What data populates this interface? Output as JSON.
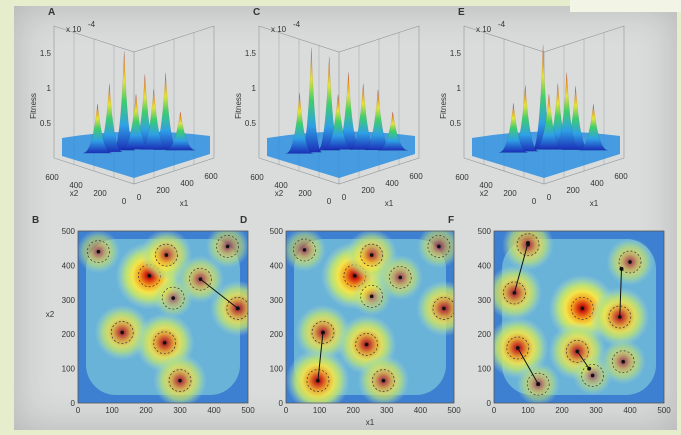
{
  "panels": {
    "A": {
      "letter": "A",
      "zscale": "x 10",
      "zexp": "-4",
      "zlabel": "Fitness",
      "zticks": [
        "0.5",
        "1",
        "1.5"
      ],
      "x1label": "x1",
      "x2label": "x2",
      "x1ticks": [
        "0",
        "200",
        "400",
        "600"
      ],
      "x2ticks": [
        "0",
        "200",
        "400",
        "600"
      ]
    },
    "C": {
      "letter": "C",
      "zscale": "x 10",
      "zexp": "-4",
      "zlabel": "Fitness",
      "zticks": [
        "0.5",
        "1",
        "1.5"
      ],
      "x1label": "x1",
      "x2label": "x2",
      "x1ticks": [
        "0",
        "200",
        "400",
        "600"
      ],
      "x2ticks": [
        "0",
        "200",
        "400",
        "600"
      ]
    },
    "E": {
      "letter": "E",
      "zscale": "x 10",
      "zexp": "-4",
      "zlabel": "Fitness",
      "zticks": [
        "0.5",
        "1",
        "1.5"
      ],
      "x1label": "x1",
      "x2label": "x2",
      "x1ticks": [
        "0",
        "200",
        "400",
        "600"
      ],
      "x2ticks": [
        "0",
        "200",
        "400",
        "600"
      ]
    },
    "B": {
      "letter": "B",
      "ylabel": "x2",
      "xlabel": "",
      "xticks": [
        "0",
        "100",
        "200",
        "300",
        "400",
        "500"
      ],
      "yticks": [
        "0",
        "100",
        "200",
        "300",
        "400",
        "500"
      ]
    },
    "D": {
      "letter": "D",
      "ylabel": "",
      "xlabel": "x1",
      "xticks": [
        "0",
        "100",
        "200",
        "300",
        "400",
        "500"
      ],
      "yticks": [
        "0",
        "100",
        "200",
        "300",
        "400",
        "500"
      ]
    },
    "F": {
      "letter": "F",
      "ylabel": "",
      "xlabel": "",
      "xticks": [
        "0",
        "100",
        "200",
        "300",
        "400",
        "500"
      ],
      "yticks": [
        "0",
        "100",
        "200",
        "300",
        "400",
        "500"
      ]
    }
  },
  "chart_data": [
    {
      "panel": "B",
      "type": "heatmap",
      "xlim": [
        0,
        500
      ],
      "ylim": [
        0,
        500
      ],
      "peaks": [
        {
          "x": 210,
          "y": 370,
          "level": 1.0
        },
        {
          "x": 260,
          "y": 430,
          "level": 0.6
        },
        {
          "x": 130,
          "y": 205,
          "level": 0.7
        },
        {
          "x": 255,
          "y": 175,
          "level": 0.8
        },
        {
          "x": 300,
          "y": 65,
          "level": 0.65
        },
        {
          "x": 470,
          "y": 275,
          "level": 0.7
        },
        {
          "x": 60,
          "y": 440,
          "level": 0.4
        },
        {
          "x": 440,
          "y": 455,
          "level": 0.4
        },
        {
          "x": 360,
          "y": 360,
          "level": 0.5
        },
        {
          "x": 280,
          "y": 305,
          "level": 0.3
        }
      ],
      "paths": [
        [
          [
            360,
            360
          ],
          [
            470,
            275
          ]
        ]
      ]
    },
    {
      "panel": "D",
      "type": "heatmap",
      "xlim": [
        0,
        500
      ],
      "ylim": [
        0,
        500
      ],
      "peaks": [
        {
          "x": 205,
          "y": 370,
          "level": 1.0
        },
        {
          "x": 255,
          "y": 430,
          "level": 0.6
        },
        {
          "x": 110,
          "y": 205,
          "level": 0.7
        },
        {
          "x": 240,
          "y": 170,
          "level": 0.8
        },
        {
          "x": 95,
          "y": 65,
          "level": 0.9
        },
        {
          "x": 290,
          "y": 65,
          "level": 0.6
        },
        {
          "x": 470,
          "y": 275,
          "level": 0.7
        },
        {
          "x": 55,
          "y": 445,
          "level": 0.4
        },
        {
          "x": 455,
          "y": 455,
          "level": 0.4
        },
        {
          "x": 340,
          "y": 365,
          "level": 0.45
        },
        {
          "x": 255,
          "y": 310,
          "level": 0.3
        }
      ],
      "paths": [
        [
          [
            95,
            65
          ],
          [
            110,
            205
          ]
        ]
      ]
    },
    {
      "panel": "F",
      "type": "heatmap",
      "xlim": [
        0,
        500
      ],
      "ylim": [
        0,
        500
      ],
      "peaks": [
        {
          "x": 260,
          "y": 275,
          "level": 1.0
        },
        {
          "x": 60,
          "y": 320,
          "level": 0.7
        },
        {
          "x": 100,
          "y": 460,
          "level": 0.6
        },
        {
          "x": 70,
          "y": 160,
          "level": 0.85
        },
        {
          "x": 245,
          "y": 150,
          "level": 0.75
        },
        {
          "x": 370,
          "y": 250,
          "level": 0.8
        },
        {
          "x": 400,
          "y": 410,
          "level": 0.5
        },
        {
          "x": 380,
          "y": 120,
          "level": 0.45
        },
        {
          "x": 130,
          "y": 55,
          "level": 0.4
        },
        {
          "x": 290,
          "y": 80,
          "level": 0.3
        }
      ],
      "paths": [
        [
          [
            60,
            320
          ],
          [
            100,
            465
          ]
        ],
        [
          [
            70,
            160
          ],
          [
            130,
            55
          ]
        ],
        [
          [
            245,
            150
          ],
          [
            280,
            100
          ]
        ],
        [
          [
            370,
            250
          ],
          [
            375,
            390
          ]
        ]
      ]
    }
  ]
}
